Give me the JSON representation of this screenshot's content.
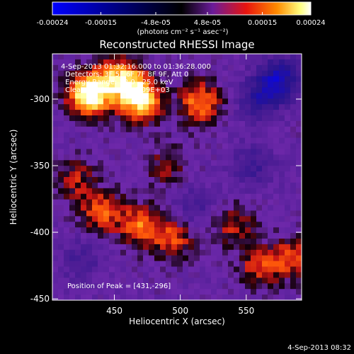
{
  "colorbar": {
    "ticks": [
      "-0.00024",
      "-0.00015",
      "-4.8e-05",
      "4.8e-05",
      "0.00015",
      "0.00024"
    ],
    "tick_values": [
      -0.00024,
      -0.00015,
      -4.8e-05,
      4.8e-05,
      0.00015,
      0.00024
    ],
    "range": [
      -0.00024,
      0.00024
    ],
    "units_line": "(photons cm⁻² s⁻¹ asec⁻²)",
    "colors": [
      "#0000ff",
      "#000000",
      "#6a1b9a",
      "#e8140e",
      "#ff8c00",
      "#ffff80",
      "#ffffff"
    ]
  },
  "plot": {
    "title": "Reconstructed RHESSI Image",
    "info_lines": [
      "4-Sep-2013 01:32:16.000 to 01:36:28.000",
      "Detectors: 3F 5F 6F 7F 8F 9F, Att 0",
      "Energy Range: 12.0 - 25.0 keV",
      "Clean  Total counts: 6.09E+03"
    ],
    "peak_label": "Position of Peak = [431,-296]",
    "timestamp": "4-Sep-2013 08:32"
  },
  "chart_data": {
    "type": "heatmap",
    "title": "Reconstructed RHESSI Image",
    "xlabel": "Heliocentric X (arcsec)",
    "ylabel": "Heliocentric Y (arcsec)",
    "xlim": [
      403,
      592
    ],
    "ylim": [
      -451,
      -266
    ],
    "x_ticks": [
      "450",
      "500",
      "550"
    ],
    "x_tick_values": [
      450,
      500,
      550
    ],
    "y_ticks": [
      "-300",
      "-350",
      "-400",
      "-450"
    ],
    "y_tick_values": [
      -300,
      -350,
      -400,
      -450
    ],
    "peak": [
      431,
      -296
    ],
    "bright_regions": [
      {
        "x": 431,
        "y": -296,
        "level": 1.0
      },
      {
        "x": 470,
        "y": -300,
        "level": 0.85
      },
      {
        "x": 455,
        "y": -285,
        "level": 0.7
      },
      {
        "x": 515,
        "y": -303,
        "level": 0.6
      },
      {
        "x": 470,
        "y": -395,
        "level": 0.55
      },
      {
        "x": 440,
        "y": -385,
        "level": 0.5
      },
      {
        "x": 495,
        "y": -405,
        "level": 0.45
      },
      {
        "x": 585,
        "y": -420,
        "level": 0.45
      },
      {
        "x": 560,
        "y": -425,
        "level": 0.4
      },
      {
        "x": 540,
        "y": -395,
        "level": 0.35
      },
      {
        "x": 420,
        "y": -360,
        "level": 0.35
      },
      {
        "x": 490,
        "y": -350,
        "level": 0.3
      }
    ],
    "dark_regions": [
      {
        "x": 575,
        "y": -285,
        "level": -0.7
      },
      {
        "x": 560,
        "y": -300,
        "level": -0.45
      },
      {
        "x": 555,
        "y": -350,
        "level": -0.35
      },
      {
        "x": 425,
        "y": -420,
        "level": -0.3
      },
      {
        "x": 510,
        "y": -380,
        "level": -0.3
      }
    ]
  }
}
